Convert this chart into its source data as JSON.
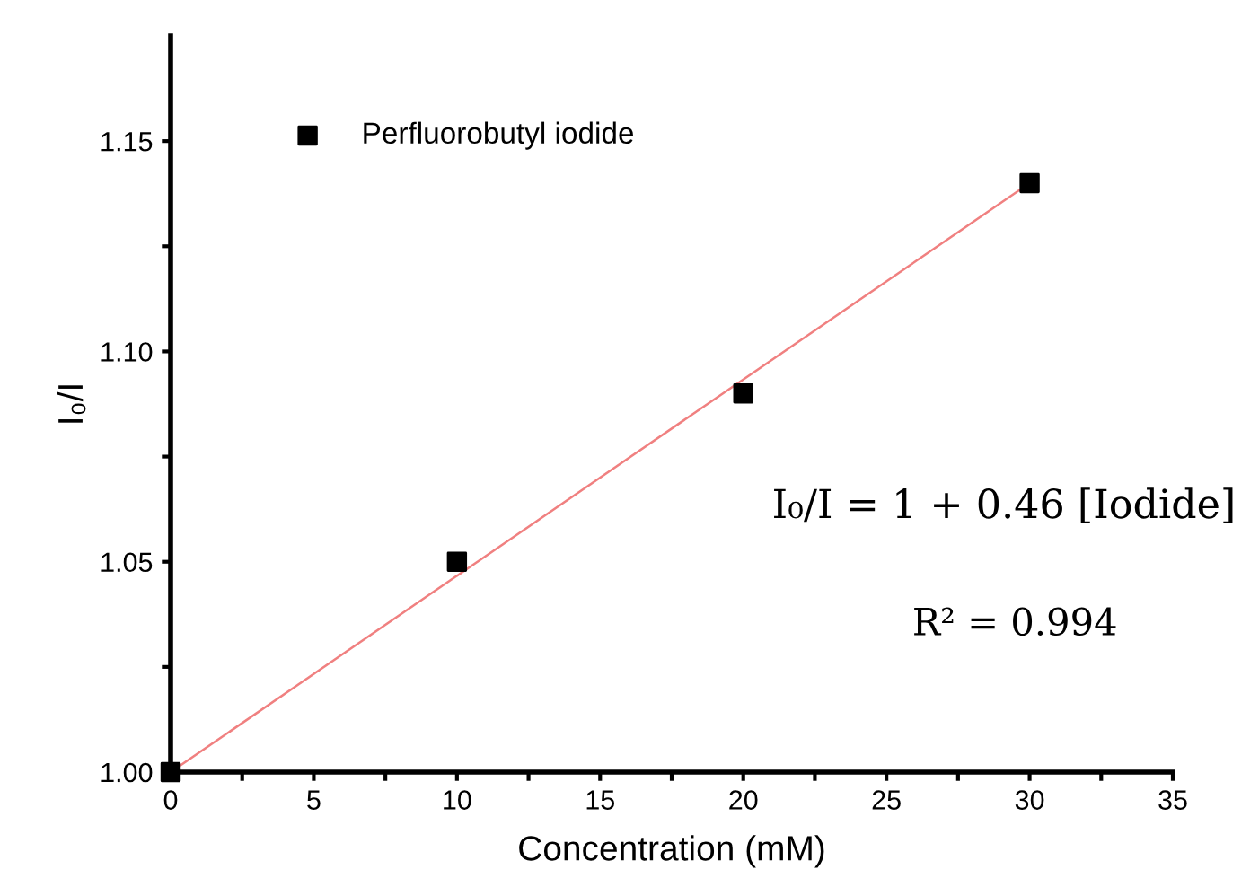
{
  "chart_data": {
    "type": "scatter",
    "xlabel": "Concentration (mM)",
    "ylabel": "I₀/I",
    "annotations": [
      "I₀/I = 1 + 0.46 [Iodide]",
      "R² = 0.994"
    ],
    "xlim": [
      0,
      35
    ],
    "ylim": [
      1.0,
      1.175
    ],
    "xticks": [
      0,
      {
        "value": 2.5,
        "label": null
      },
      5,
      {
        "value": 7.5,
        "label": null
      },
      10,
      {
        "value": 12.5,
        "label": null
      },
      15,
      {
        "value": 17.5,
        "label": null
      },
      20,
      {
        "value": 22.5,
        "label": null
      },
      25,
      {
        "value": 27.5,
        "label": null
      },
      30,
      {
        "value": 32.5,
        "label": null
      },
      35
    ],
    "yticks": [
      {
        "value": 1.0,
        "label": "1.00"
      },
      {
        "value": 1.025,
        "label": null
      },
      {
        "value": 1.05,
        "label": "1.05"
      },
      {
        "value": 1.075,
        "label": null
      },
      {
        "value": 1.1,
        "label": "1.10"
      },
      {
        "value": 1.125,
        "label": null
      },
      {
        "value": 1.15,
        "label": "1.15"
      }
    ],
    "grid": false,
    "legend": "top left",
    "series": [
      {
        "name": "Perfluorobutyl iodide",
        "marker": "square",
        "color": "#000000",
        "x": [
          0,
          10,
          20,
          30
        ],
        "values": [
          1.0,
          1.05,
          1.09,
          1.14
        ]
      },
      {
        "type": "line",
        "color": "#f08080",
        "x": [
          0,
          30
        ],
        "values": [
          1.0,
          1.14
        ],
        "line_style": "solid",
        "marker": "none"
      }
    ]
  }
}
